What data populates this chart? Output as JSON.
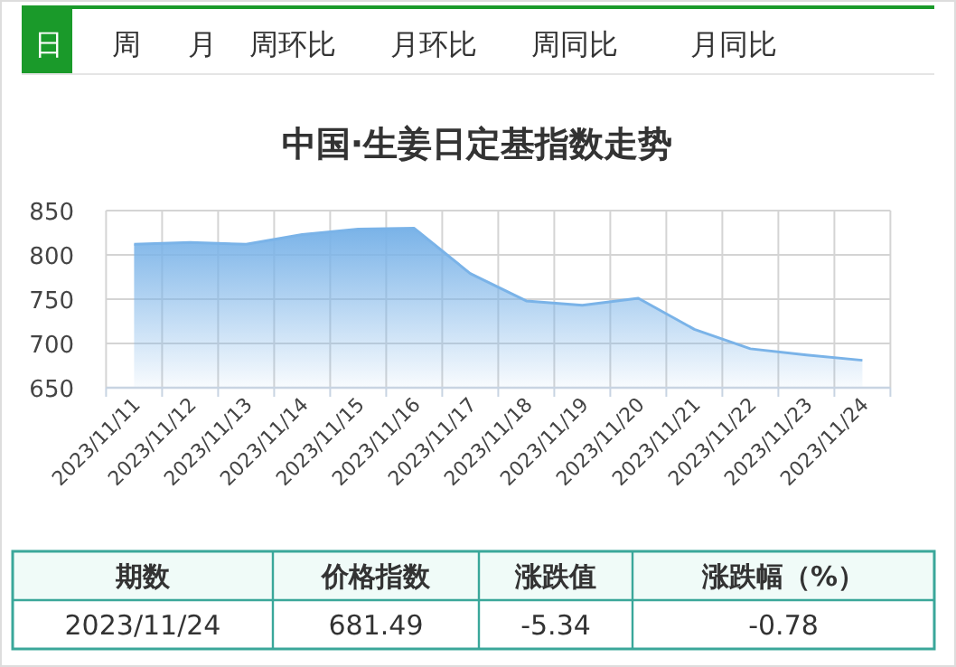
{
  "chart_data": {
    "type": "area",
    "title": "中国·生姜日定基指数走势",
    "categories": [
      "2023/11/11",
      "2023/11/12",
      "2023/11/13",
      "2023/11/14",
      "2023/11/15",
      "2023/11/16",
      "2023/11/17",
      "2023/11/18",
      "2023/11/19",
      "2023/11/20",
      "2023/11/21",
      "2023/11/22",
      "2023/11/23",
      "2023/11/24"
    ],
    "values": [
      812,
      814,
      812,
      823,
      829,
      830,
      779,
      748,
      743,
      751,
      716,
      694,
      687,
      681
    ],
    "color": "#7ab3e8",
    "ylim": [
      650,
      850
    ],
    "yticks": [
      650,
      700,
      750,
      800,
      850
    ],
    "grid": true,
    "annotations": [
      "日",
      "周",
      "月",
      "周环比",
      "月环比",
      "周同比",
      "月同比",
      "期数",
      "价格指数",
      "涨跌值",
      "涨跌幅（%）",
      "2023/11/24",
      "681.49",
      "-5.34",
      "-0.78"
    ]
  }
}
